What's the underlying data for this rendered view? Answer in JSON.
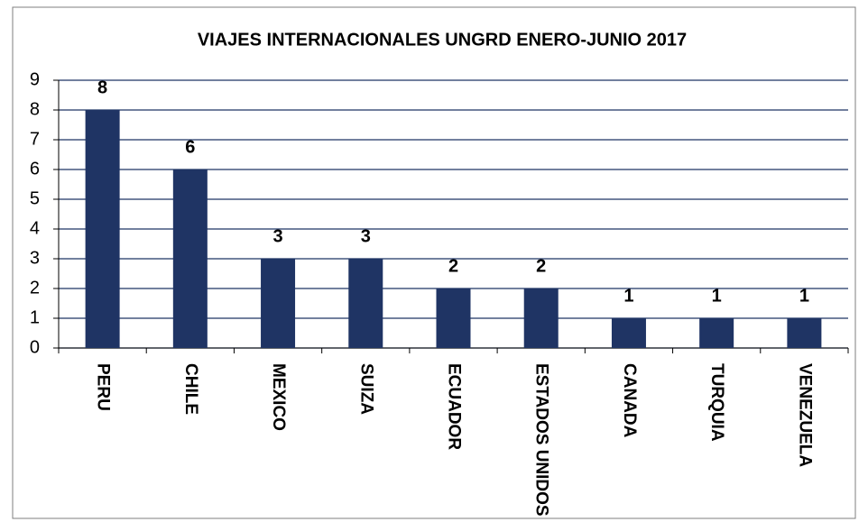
{
  "chart_data": {
    "type": "bar",
    "title": "VIAJES INTERNACIONALES UNGRD ENERO-JUNIO 2017",
    "categories": [
      "PERU",
      "CHILE",
      "MEXICO",
      "SUIZA",
      "ECUADOR",
      "ESTADOS UNIDOS",
      "CANADA",
      "TURQUIA",
      "VENEZUELA"
    ],
    "values": [
      8,
      6,
      3,
      3,
      2,
      2,
      1,
      1,
      1
    ],
    "color": "#1f3464",
    "ylim": [
      0,
      9
    ],
    "yticks": [
      0,
      1,
      2,
      3,
      4,
      5,
      6,
      7,
      8,
      9
    ],
    "grid": true
  }
}
